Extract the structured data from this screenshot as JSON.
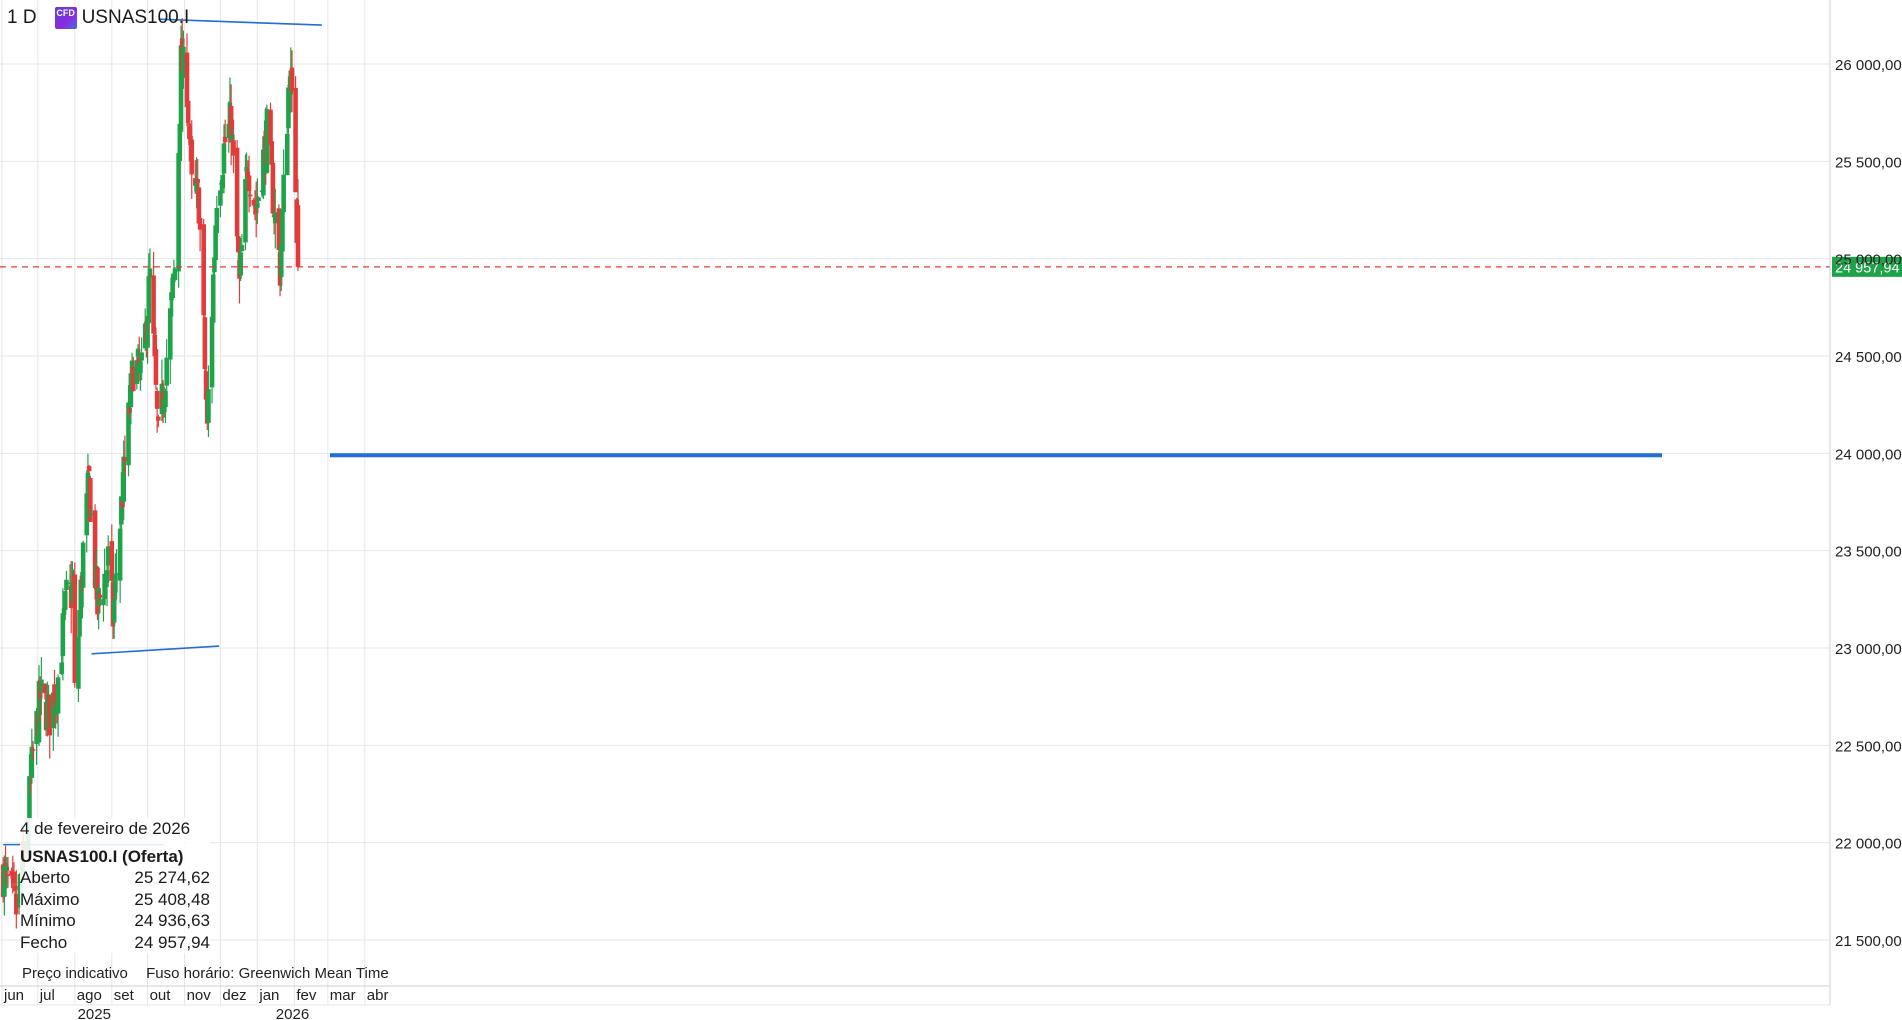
{
  "header": {
    "timeframe": "1 D",
    "cfd_badge": "CFD",
    "symbol": "USNAS100.I"
  },
  "info_panel": {
    "date": "4 de fevereiro de 2026",
    "instrument": "USNAS100.I (Oferta)",
    "rows": [
      {
        "label": "Aberto",
        "value": "25 274,62"
      },
      {
        "label": "Máximo",
        "value": "25 408,48"
      },
      {
        "label": "Mínimo",
        "value": "24 936,63"
      },
      {
        "label": "Fecho",
        "value": "24 957,94"
      }
    ]
  },
  "footer": {
    "price_note": "Preço indicativo",
    "timezone": "Fuso horário: Greenwich Mean Time"
  },
  "colors": {
    "up": "#1fa34a",
    "down": "#e03c3c",
    "trendline": "#1e6fd9",
    "grid": "#e6e6e6",
    "last_price_bg": "#1fa34a"
  },
  "chart_data": {
    "type": "candlestick",
    "symbol": "USNAS100.I",
    "timeframe": "1 D",
    "ylim": [
      21400,
      26350
    ],
    "y_ticks": [
      21500,
      22000,
      22500,
      23000,
      23500,
      24000,
      24500,
      25000,
      25500,
      26000
    ],
    "y_tick_labels": [
      "21 500,00",
      "22 000,00",
      "22 500,00",
      "23 000,00",
      "23 500,00",
      "24 000,00",
      "24 500,00",
      "25 000,00",
      "25 500,00",
      "26 000,00"
    ],
    "x_axis_months": [
      "jun",
      "jul",
      "ago",
      "set",
      "out",
      "nov",
      "dez",
      "jan",
      "fev",
      "mar",
      "abr"
    ],
    "x_axis_years": [
      "2025",
      "2026"
    ],
    "last_price": 24957.94,
    "last_price_label": "24 957,94",
    "last_candle": {
      "date": "2026-02-04",
      "open": 25274.62,
      "high": 25408.48,
      "low": 24936.63,
      "close": 24957.94
    },
    "close_path": [
      {
        "date": "2025-06-02",
        "close": 21850
      },
      {
        "date": "2025-06-13",
        "close": 21650
      },
      {
        "date": "2025-06-20",
        "close": 21950
      },
      {
        "date": "2025-06-27",
        "close": 22450
      },
      {
        "date": "2025-07-03",
        "close": 22750
      },
      {
        "date": "2025-07-11",
        "close": 22650
      },
      {
        "date": "2025-07-18",
        "close": 22850
      },
      {
        "date": "2025-07-25",
        "close": 23250
      },
      {
        "date": "2025-07-31",
        "close": 23300
      },
      {
        "date": "2025-08-01",
        "close": 22750
      },
      {
        "date": "2025-08-08",
        "close": 23500
      },
      {
        "date": "2025-08-13",
        "close": 23850
      },
      {
        "date": "2025-08-20",
        "close": 23200
      },
      {
        "date": "2025-08-29",
        "close": 23450
      },
      {
        "date": "2025-09-02",
        "close": 23150
      },
      {
        "date": "2025-09-08",
        "close": 23650
      },
      {
        "date": "2025-09-12",
        "close": 23950
      },
      {
        "date": "2025-09-19",
        "close": 24450
      },
      {
        "date": "2025-09-26",
        "close": 24400
      },
      {
        "date": "2025-10-03",
        "close": 24900
      },
      {
        "date": "2025-10-10",
        "close": 24050
      },
      {
        "date": "2025-10-17",
        "close": 24500
      },
      {
        "date": "2025-10-24",
        "close": 24950
      },
      {
        "date": "2025-10-29",
        "close": 26000
      },
      {
        "date": "2025-11-03",
        "close": 25900
      },
      {
        "date": "2025-11-07",
        "close": 25350
      },
      {
        "date": "2025-11-13",
        "close": 25300
      },
      {
        "date": "2025-11-20",
        "close": 24100
      },
      {
        "date": "2025-11-21",
        "close": 24300
      },
      {
        "date": "2025-11-28",
        "close": 25350
      },
      {
        "date": "2025-12-05",
        "close": 25600
      },
      {
        "date": "2025-12-10",
        "close": 25700
      },
      {
        "date": "2025-12-17",
        "close": 24850
      },
      {
        "date": "2025-12-24",
        "close": 25500
      },
      {
        "date": "2025-12-31",
        "close": 25250
      },
      {
        "date": "2026-01-09",
        "close": 25650
      },
      {
        "date": "2026-01-20",
        "close": 24950
      },
      {
        "date": "2026-01-28",
        "close": 26000
      },
      {
        "date": "2026-02-02",
        "close": 25400
      },
      {
        "date": "2026-02-04",
        "close": 24957.94
      }
    ],
    "horizontal_level": 23990,
    "trendlines": [
      {
        "start_date": "2025-10-10",
        "start_price": 26230,
        "end_date": "2026-02-24",
        "end_price": 26200
      },
      {
        "start_date": "2025-08-15",
        "start_price": 22970,
        "end_date": "2025-11-30",
        "end_price": 23010
      },
      {
        "start_date": "2025-06-02",
        "start_price": 21990,
        "end_date": "2025-10-15",
        "end_price": 21990
      }
    ],
    "grid": true
  }
}
